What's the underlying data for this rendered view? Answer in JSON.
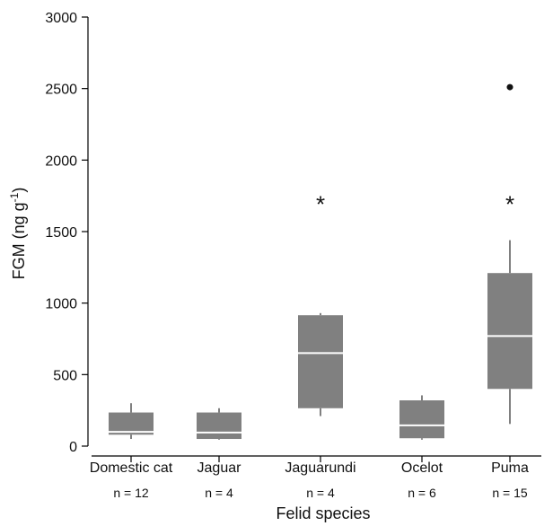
{
  "chart_data": {
    "type": "box",
    "title": "",
    "xlabel": "Felid species",
    "ylabel": {
      "base": "FGM (ng g",
      "superscript": "-1",
      "close": ")"
    },
    "ylim": [
      0,
      3000
    ],
    "yticks": [
      0,
      500,
      1000,
      1500,
      2000,
      2500,
      3000
    ],
    "grid": false,
    "categories": [
      "Domestic cat",
      "Jaguar",
      "Jaguarundi",
      "Ocelot",
      "Puma"
    ],
    "sample_sizes": [
      "n = 12",
      "n = 4",
      "n = 4",
      "n = 6",
      "n = 15"
    ],
    "boxes": [
      {
        "category": "Domestic cat",
        "whisker_low": 50,
        "q1": 80,
        "median": 100,
        "q3": 235,
        "whisker_high": 300,
        "outliers": []
      },
      {
        "category": "Jaguar",
        "whisker_low": 45,
        "q1": 50,
        "median": 95,
        "q3": 235,
        "whisker_high": 265,
        "outliers": []
      },
      {
        "category": "Jaguarundi",
        "whisker_low": 210,
        "q1": 265,
        "median": 650,
        "q3": 915,
        "whisker_high": 930,
        "outliers": [
          {
            "value": 1730,
            "symbol": "*"
          }
        ]
      },
      {
        "category": "Ocelot",
        "whisker_low": 45,
        "q1": 55,
        "median": 145,
        "q3": 320,
        "whisker_high": 355,
        "outliers": []
      },
      {
        "category": "Puma",
        "whisker_low": 155,
        "q1": 400,
        "median": 770,
        "q3": 1210,
        "whisker_high": 1440,
        "outliers": [
          {
            "value": 1730,
            "symbol": "*"
          },
          {
            "value": 2510,
            "symbol": "●"
          }
        ]
      }
    ],
    "colors": {
      "box_fill": "#808080",
      "median_line": "#ffffff",
      "whisker": "#808080",
      "axis": "#000000"
    }
  }
}
